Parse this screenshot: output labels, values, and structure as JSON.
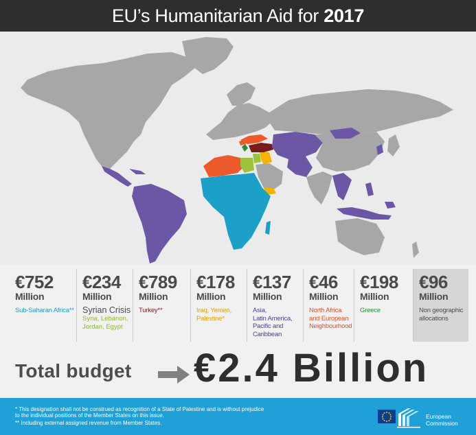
{
  "header": {
    "title_prefix": "EU’s Humanitarian Aid for ",
    "title_year": "2017"
  },
  "colors": {
    "title_bar": "#2e2e2e",
    "land_grey": "#a7a7a7",
    "sub_saharan": "#1ca0c8",
    "syria": "#9dc23b",
    "turkey": "#7a1b1b",
    "iraq_yemen": "#f5b300",
    "asia_latam": "#6b57a6",
    "north_africa": "#ec5a2b",
    "greece": "#2d8b3a",
    "footer": "#1fa0d6"
  },
  "allocations": [
    {
      "amount": "€752",
      "unit": "Million",
      "label": "Sub-Saharan Africa**",
      "color": "#1ca0c8"
    },
    {
      "amount": "€234",
      "unit": "Million",
      "label_main": "Syrian Crisis",
      "label": "Syria, Lebanon,\nJordan, Egypt",
      "color": "#8fb535"
    },
    {
      "amount": "€789",
      "unit": "Million",
      "label": "Turkey**",
      "color": "#7a1b1b"
    },
    {
      "amount": "€178",
      "unit": "Million",
      "label": "Iraq, Yemen,\nPalestine*",
      "color": "#e5a100"
    },
    {
      "amount": "€137",
      "unit": "Million",
      "label": "Asia,\nLatin America,\nPacific and\nCaribbean",
      "color": "#4b3f91"
    },
    {
      "amount": "€46",
      "unit": "Million",
      "label": "North Africa\nand European\nNeighbourhood",
      "color": "#e4502a"
    },
    {
      "amount": "€198",
      "unit": "Million",
      "label": "Greece",
      "color": "#2d8b3a"
    },
    {
      "amount": "€96",
      "unit": "Million",
      "label": "Non geographic\nallocations",
      "color": "#4a4a4a"
    }
  ],
  "total": {
    "label": "Total budget",
    "value": "€2.4 Billion"
  },
  "footer": {
    "note1": "*  This designation shall not be construed as recognition of a State of Palestine and is without prejudice\n   to the individual positions of the Member States on this issue.",
    "note2": "** Including external assigned revenue from Member States.",
    "logo_text": "European\nCommission"
  }
}
